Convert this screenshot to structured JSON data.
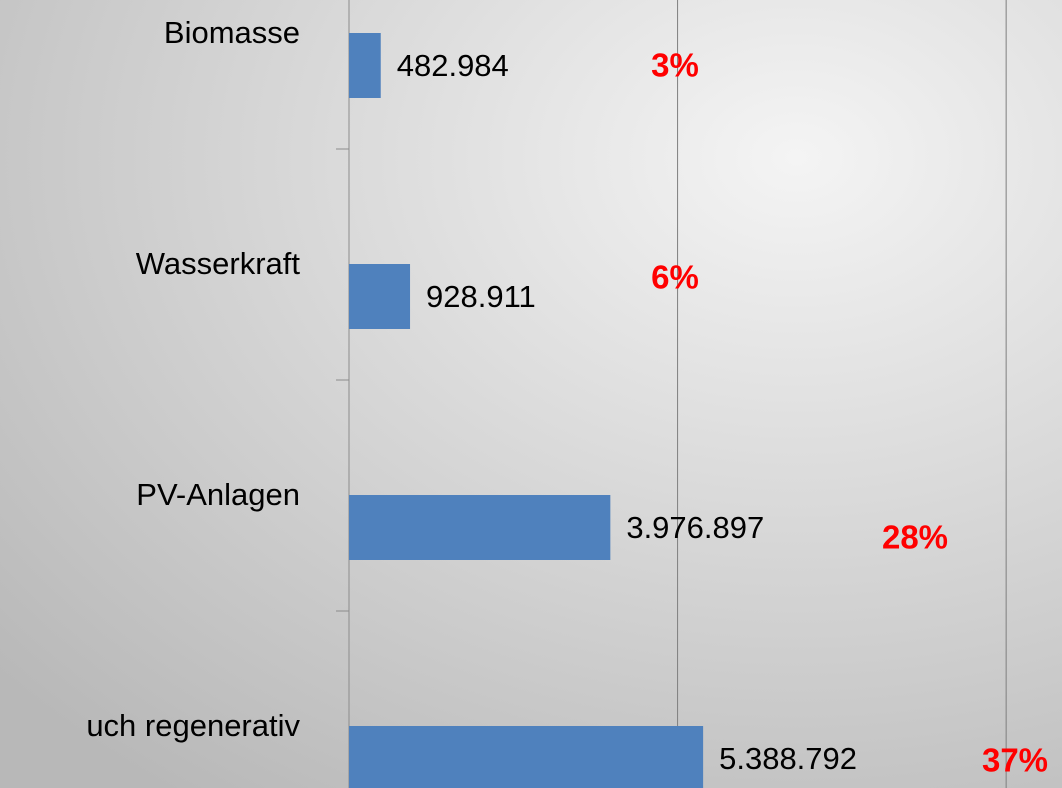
{
  "chart_data": {
    "type": "barh",
    "categories": [
      "Biomasse",
      "Wasserkraft",
      "PV-Anlagen",
      "uch regenerativ"
    ],
    "values": [
      482984,
      928911,
      3976897,
      5388792
    ],
    "value_labels": [
      "482.984",
      "928.911",
      "3.976.897",
      "5.388.792"
    ],
    "annotations": [
      "3%",
      "6%",
      "28%",
      "37%"
    ],
    "color": "#4f81bd",
    "xlim": [
      0,
      10850000
    ],
    "xticks": [
      0,
      5000000,
      10000000
    ],
    "grid": true
  }
}
